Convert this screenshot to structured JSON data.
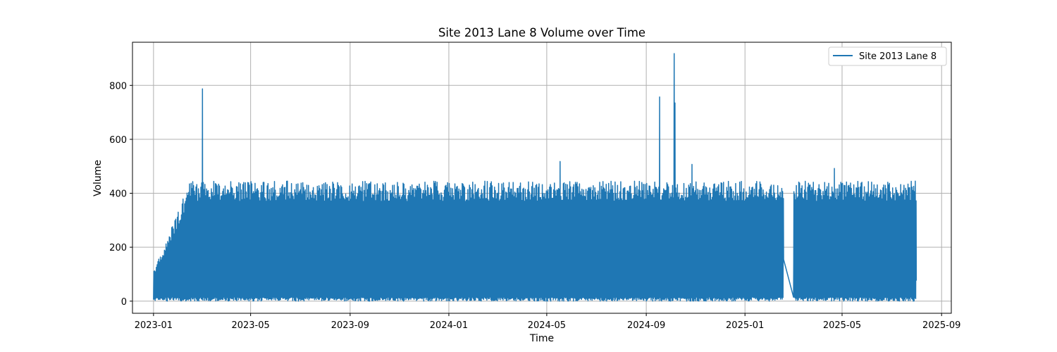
{
  "chart_data": {
    "type": "line",
    "title": "Site 2013 Lane 8 Volume over Time",
    "xlabel": "Time",
    "ylabel": "Volume",
    "xlim": [
      "2022-12-06",
      "2025-09-13"
    ],
    "ylim": [
      -45,
      960
    ],
    "x_ticks": [
      "2023-01",
      "2023-05",
      "2023-09",
      "2024-01",
      "2024-05",
      "2024-09",
      "2025-01",
      "2025-05",
      "2025-09"
    ],
    "y_ticks": [
      0,
      200,
      400,
      600,
      800
    ],
    "grid": true,
    "legend_position": "top-right",
    "series": [
      {
        "name": "Site 2013 Lane 8",
        "color": "#1f77b4",
        "start": "2023-01-01",
        "end": "2025-07-31",
        "baseline_peak": 420,
        "spikes": [
          {
            "date": "2023-03-02",
            "value": 787
          },
          {
            "date": "2024-05-17",
            "value": 518
          },
          {
            "date": "2024-09-17",
            "value": 757
          },
          {
            "date": "2024-10-05",
            "value": 918
          },
          {
            "date": "2024-10-06",
            "value": 735
          },
          {
            "date": "2024-10-27",
            "value": 507
          },
          {
            "date": "2025-04-21",
            "value": 492
          }
        ],
        "gaps": [
          {
            "from": "2025-02-17",
            "to": "2025-03-02"
          }
        ]
      }
    ]
  }
}
